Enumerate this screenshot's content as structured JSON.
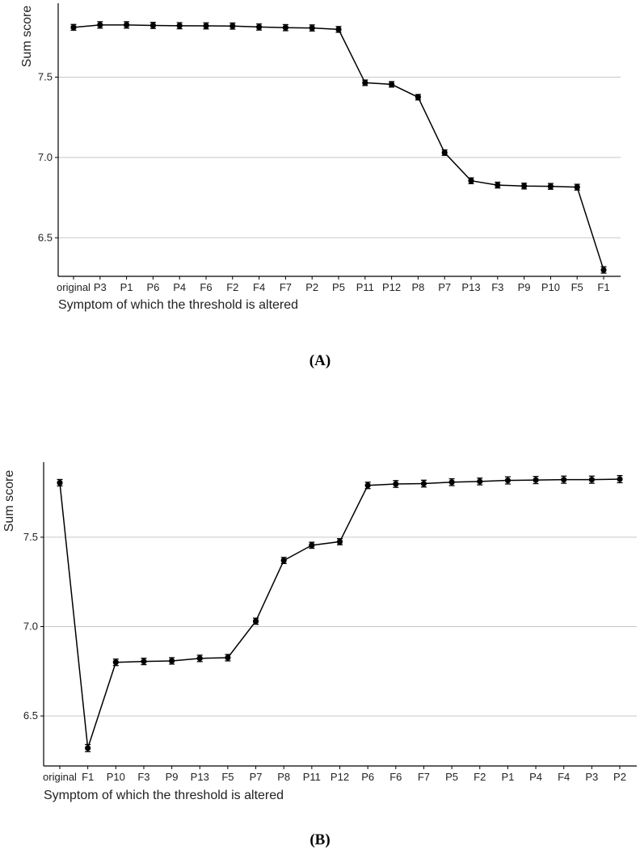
{
  "chart_data": [
    {
      "panel_label": "(A)",
      "type": "line",
      "xlabel": "Symptom of which the threshold is altered",
      "ylabel": "Sum score",
      "ylim": [
        6.26,
        7.96
      ],
      "yticks": [
        6.5,
        7.0,
        7.5
      ],
      "ytick_labels": [
        "6.5",
        "7.0",
        "7.5"
      ],
      "grid": "horizontal major",
      "categories": [
        "original",
        "P3",
        "P1",
        "P6",
        "P4",
        "F6",
        "F2",
        "F4",
        "F7",
        "P2",
        "P5",
        "P11",
        "P12",
        "P8",
        "P7",
        "P13",
        "F3",
        "P9",
        "P10",
        "F5",
        "F1"
      ],
      "series": [
        {
          "values": [
            7.81,
            7.825,
            7.825,
            7.822,
            7.82,
            7.819,
            7.818,
            7.812,
            7.808,
            7.806,
            7.797,
            7.465,
            7.455,
            7.375,
            7.03,
            6.855,
            6.828,
            6.822,
            6.82,
            6.815,
            6.3
          ],
          "error": [
            0.018,
            0.02,
            0.02,
            0.019,
            0.019,
            0.019,
            0.019,
            0.019,
            0.019,
            0.019,
            0.018,
            0.017,
            0.017,
            0.017,
            0.017,
            0.018,
            0.018,
            0.018,
            0.018,
            0.018,
            0.02
          ]
        }
      ]
    },
    {
      "panel_label": "(B)",
      "type": "line",
      "xlabel": "Symptom of which the threshold is altered",
      "ylabel": "Sum score",
      "ylim": [
        6.22,
        7.92
      ],
      "yticks": [
        6.5,
        7.0,
        7.5
      ],
      "ytick_labels": [
        "6.5",
        "7.0",
        "7.5"
      ],
      "grid": "horizontal major",
      "categories": [
        "original",
        "F1",
        "P10",
        "F3",
        "P9",
        "P13",
        "F5",
        "P7",
        "P8",
        "P11",
        "P12",
        "P6",
        "F6",
        "F7",
        "P5",
        "F2",
        "P1",
        "P4",
        "F4",
        "P3",
        "P2"
      ],
      "series": [
        {
          "values": [
            7.805,
            6.32,
            6.8,
            6.805,
            6.808,
            6.822,
            6.826,
            7.03,
            7.37,
            7.455,
            7.475,
            7.79,
            7.798,
            7.8,
            7.808,
            7.812,
            7.818,
            7.82,
            7.822,
            7.822,
            7.825
          ],
          "error": [
            0.018,
            0.02,
            0.018,
            0.018,
            0.018,
            0.018,
            0.018,
            0.017,
            0.017,
            0.017,
            0.017,
            0.018,
            0.019,
            0.019,
            0.019,
            0.019,
            0.02,
            0.02,
            0.02,
            0.02,
            0.02
          ]
        }
      ]
    }
  ]
}
